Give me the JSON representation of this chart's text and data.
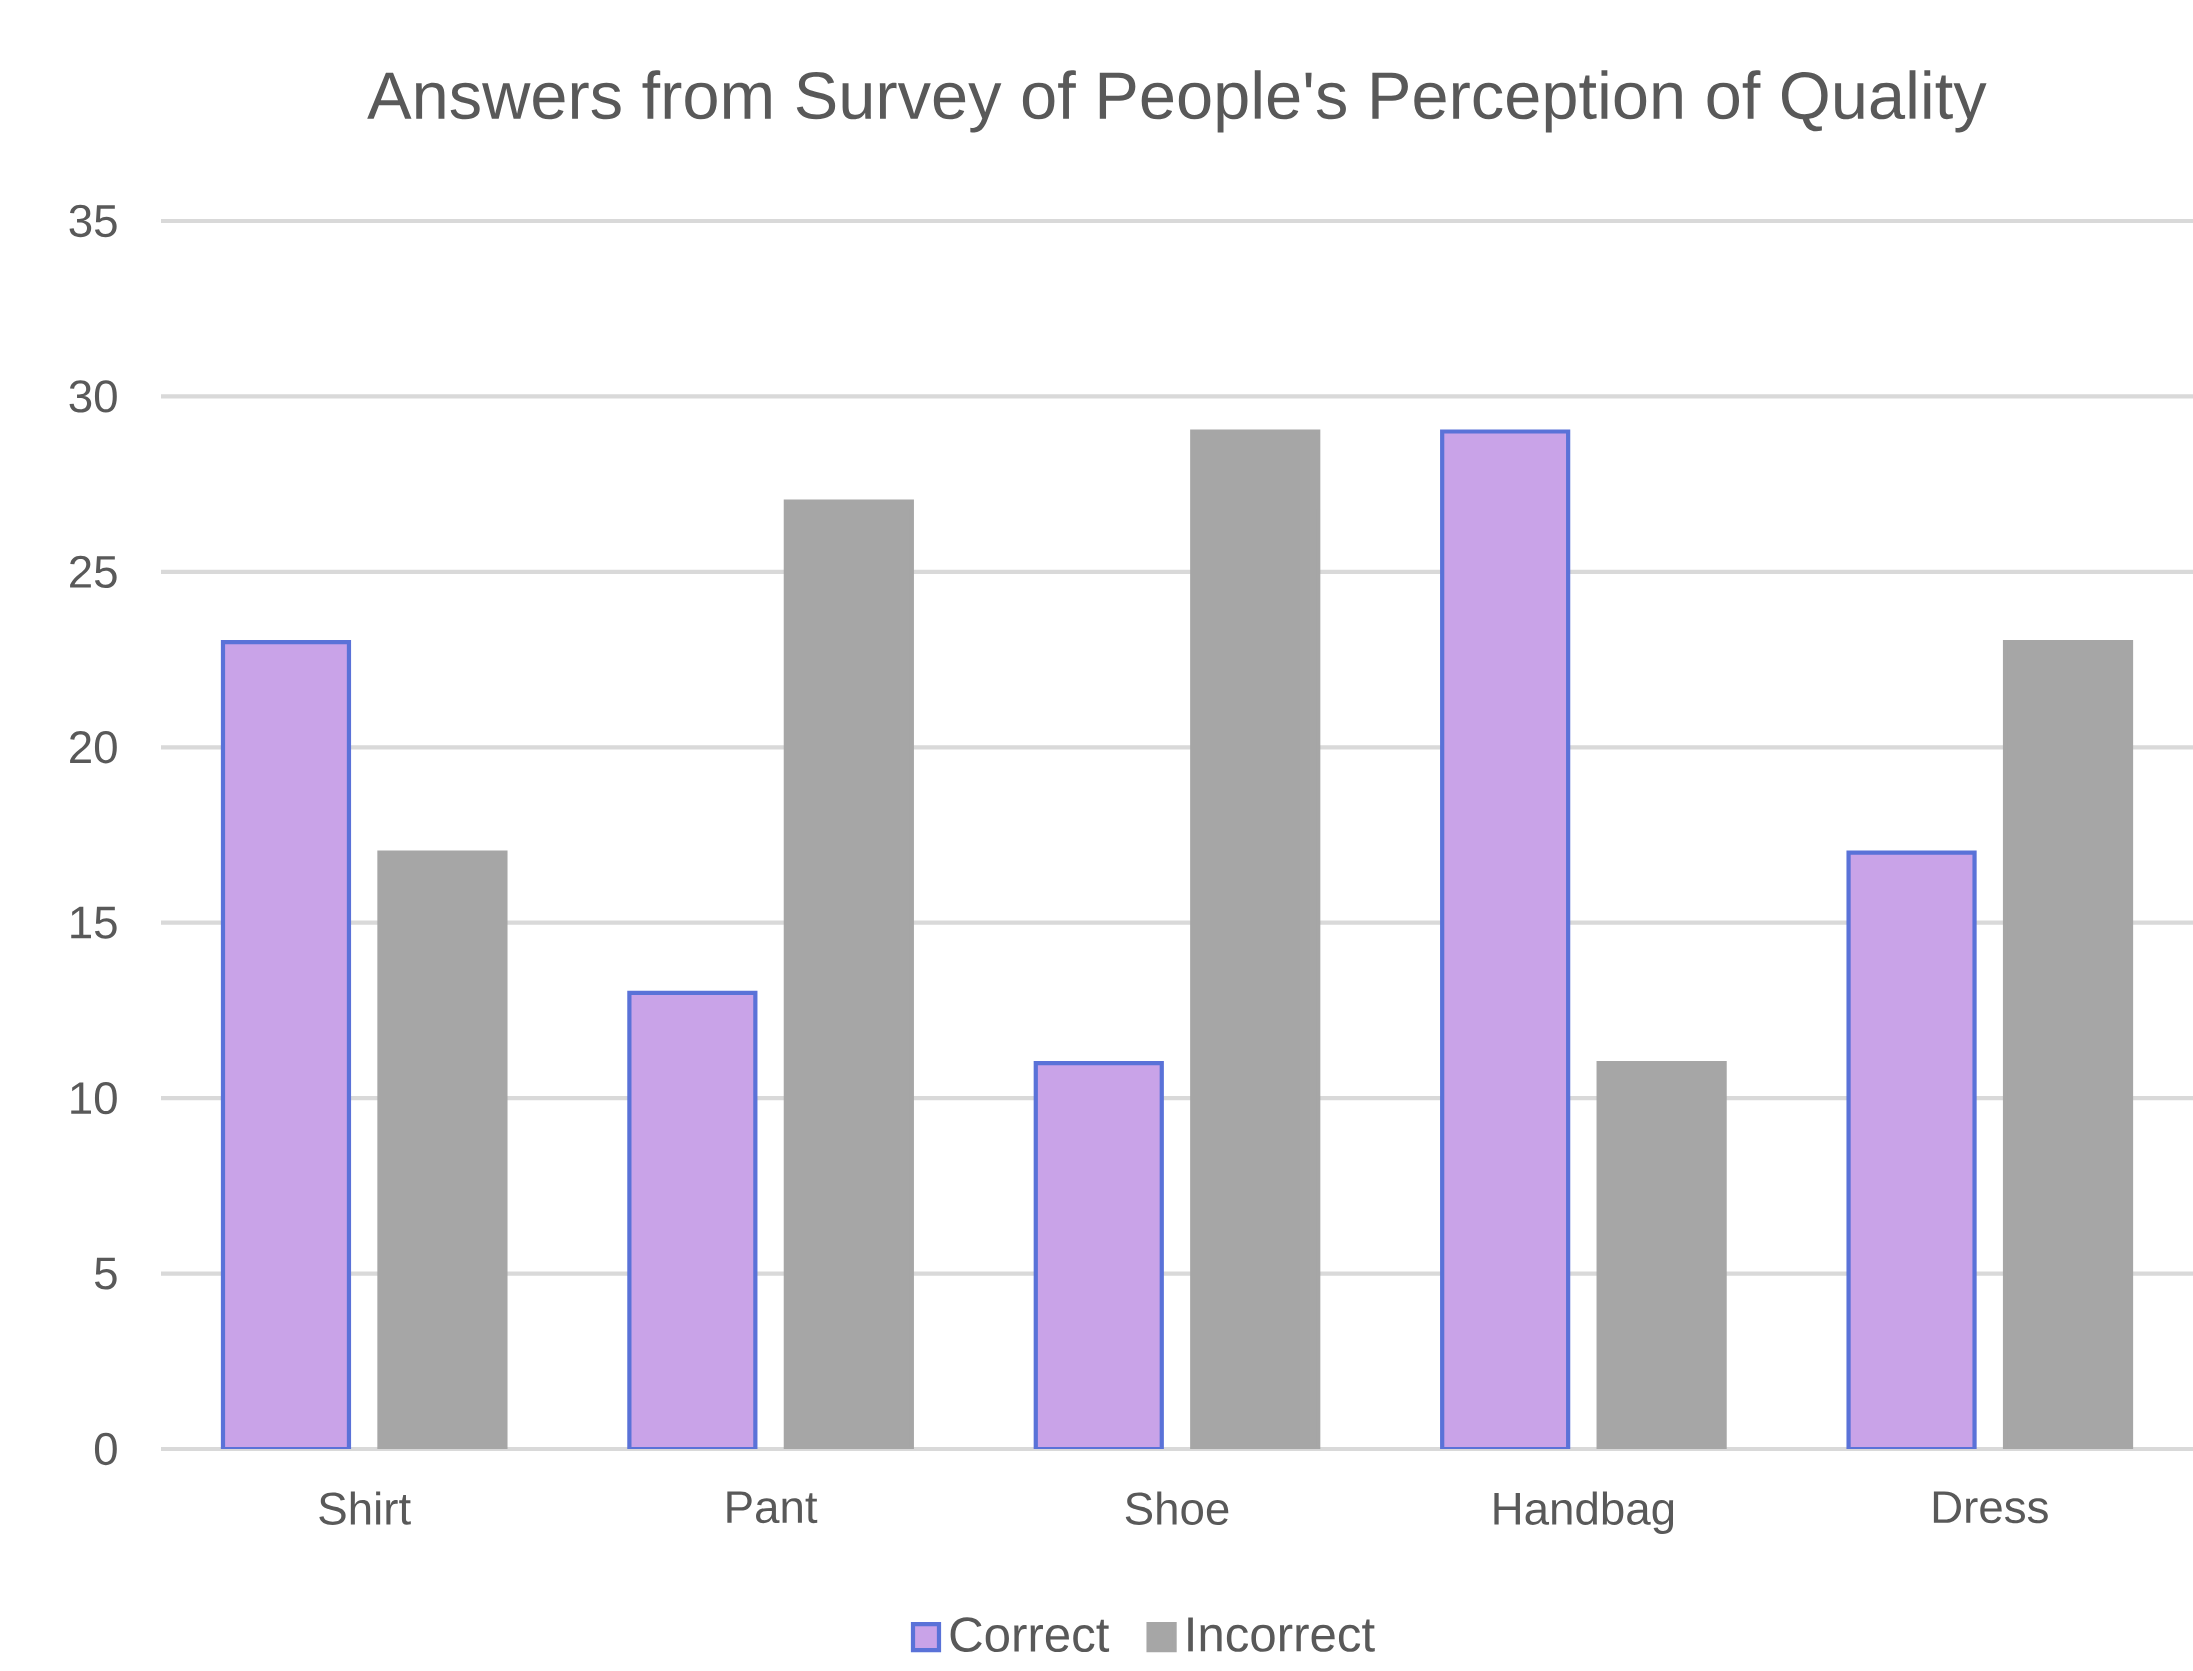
{
  "chart_data": {
    "type": "bar",
    "title": "Answers from Survey of People's Perception of Quality",
    "categories": [
      "Shirt",
      "Pant",
      "Shoe",
      "Handbag",
      "Dress"
    ],
    "series": [
      {
        "name": "Correct",
        "color": "#c9a3e8",
        "values": [
          23,
          13,
          11,
          29,
          17
        ]
      },
      {
        "name": "Incorrect",
        "color": "#a6a6a6",
        "values": [
          17,
          27,
          29,
          11,
          23
        ]
      }
    ],
    "ylim": [
      0,
      35
    ],
    "yticks": [
      0,
      5,
      10,
      15,
      20,
      25,
      30,
      35
    ],
    "grid": "y",
    "legend": "bottom"
  }
}
